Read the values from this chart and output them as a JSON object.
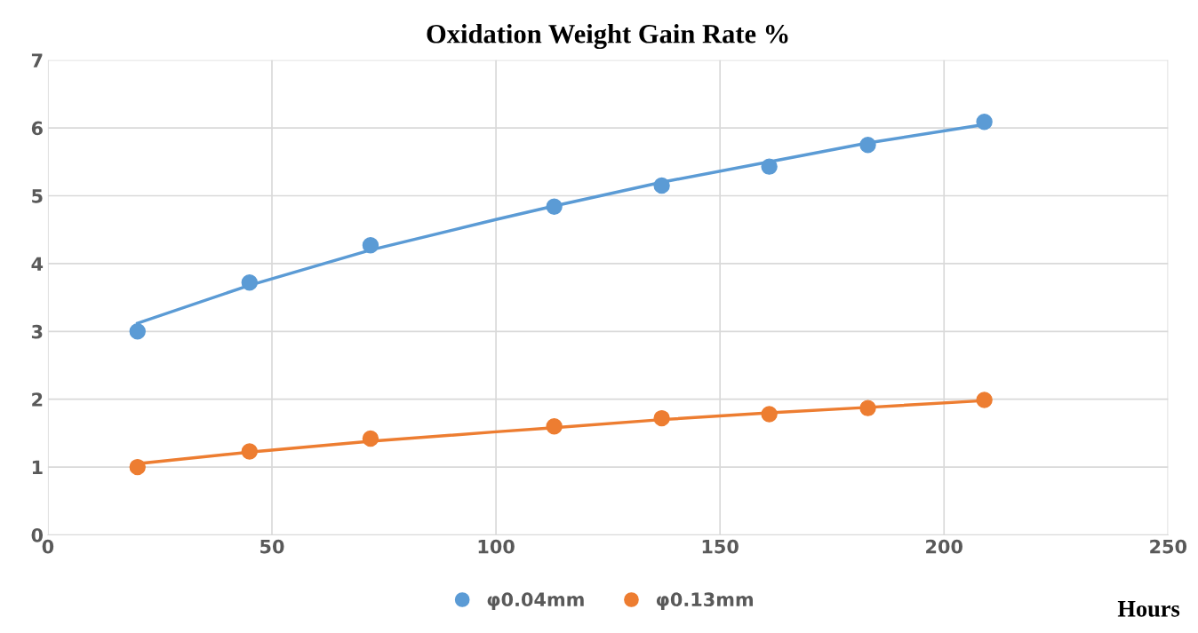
{
  "chart_data": {
    "type": "scatter",
    "title": "Oxidation Weight Gain Rate %",
    "xlabel": "Hours",
    "xlim": [
      0,
      250
    ],
    "xticks": [
      0,
      50,
      100,
      150,
      200,
      250
    ],
    "ylim": [
      0,
      7
    ],
    "yticks": [
      0,
      1,
      2,
      3,
      4,
      5,
      6,
      7
    ],
    "grid": true,
    "legend": "bottom",
    "marker": "circle",
    "series": [
      {
        "name": "φ0.04mm",
        "color": "#5b9bd5",
        "x": [
          20,
          45,
          72,
          113,
          137,
          161,
          183,
          209
        ],
        "values": [
          3.0,
          3.72,
          4.27,
          4.84,
          5.15,
          5.43,
          5.75,
          6.09
        ]
      },
      {
        "name": "φ0.13mm",
        "color": "#ed7d31",
        "x": [
          20,
          45,
          72,
          113,
          137,
          161,
          183,
          209
        ],
        "values": [
          1.0,
          1.23,
          1.42,
          1.6,
          1.72,
          1.78,
          1.87,
          1.99
        ]
      },
      {
        "type": "line",
        "marker": "none",
        "color": "#5b9bd5",
        "x": [
          20,
          45,
          72,
          100,
          113,
          137,
          161,
          183,
          209
        ],
        "values": [
          3.12,
          3.68,
          4.2,
          4.65,
          4.85,
          5.2,
          5.5,
          5.78,
          6.05
        ]
      },
      {
        "type": "line",
        "marker": "none",
        "color": "#ed7d31",
        "x": [
          20,
          45,
          72,
          100,
          113,
          137,
          161,
          183,
          209
        ],
        "values": [
          1.05,
          1.22,
          1.38,
          1.52,
          1.58,
          1.7,
          1.8,
          1.88,
          1.98
        ]
      }
    ]
  }
}
